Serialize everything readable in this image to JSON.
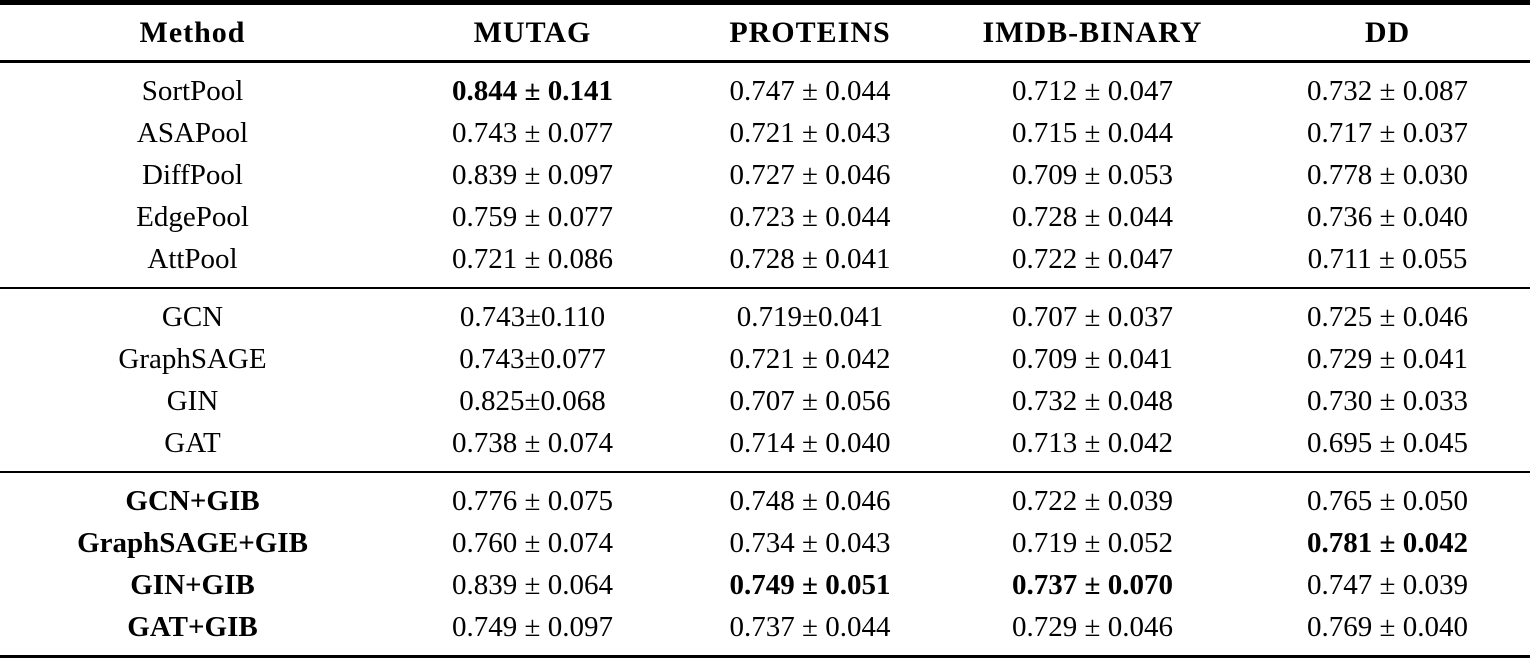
{
  "table": {
    "columns": [
      "Method",
      "MUTAG",
      "PROTEINS",
      "IMDB-BINARY",
      "DD"
    ],
    "text_color": "#000000",
    "background_color": "#ffffff",
    "rule_color": "#000000",
    "sections": [
      {
        "name": "pooling-methods",
        "rows": [
          {
            "method": {
              "text": "SortPool",
              "bold": false
            },
            "values": [
              {
                "text": "0.844 ± 0.141",
                "bold": true
              },
              {
                "text": "0.747 ± 0.044",
                "bold": false
              },
              {
                "text": "0.712 ± 0.047",
                "bold": false
              },
              {
                "text": "0.732 ± 0.087",
                "bold": false
              }
            ]
          },
          {
            "method": {
              "text": "ASAPool",
              "bold": false
            },
            "values": [
              {
                "text": "0.743 ± 0.077",
                "bold": false
              },
              {
                "text": "0.721 ± 0.043",
                "bold": false
              },
              {
                "text": "0.715 ± 0.044",
                "bold": false
              },
              {
                "text": "0.717 ± 0.037",
                "bold": false
              }
            ]
          },
          {
            "method": {
              "text": "DiffPool",
              "bold": false
            },
            "values": [
              {
                "text": "0.839 ± 0.097",
                "bold": false
              },
              {
                "text": "0.727 ± 0.046",
                "bold": false
              },
              {
                "text": "0.709 ± 0.053",
                "bold": false
              },
              {
                "text": "0.778 ± 0.030",
                "bold": false
              }
            ]
          },
          {
            "method": {
              "text": "EdgePool",
              "bold": false
            },
            "values": [
              {
                "text": "0.759 ± 0.077",
                "bold": false
              },
              {
                "text": "0.723 ± 0.044",
                "bold": false
              },
              {
                "text": "0.728 ± 0.044",
                "bold": false
              },
              {
                "text": "0.736 ± 0.040",
                "bold": false
              }
            ]
          },
          {
            "method": {
              "text": "AttPool",
              "bold": false
            },
            "values": [
              {
                "text": "0.721 ± 0.086",
                "bold": false
              },
              {
                "text": "0.728 ± 0.041",
                "bold": false
              },
              {
                "text": "0.722 ± 0.047",
                "bold": false
              },
              {
                "text": "0.711 ± 0.055",
                "bold": false
              }
            ]
          }
        ]
      },
      {
        "name": "gnn-baselines",
        "rows": [
          {
            "method": {
              "text": "GCN",
              "bold": false
            },
            "values": [
              {
                "text": "0.743±0.110",
                "bold": false
              },
              {
                "text": "0.719±0.041",
                "bold": false
              },
              {
                "text": "0.707 ± 0.037",
                "bold": false
              },
              {
                "text": "0.725 ± 0.046",
                "bold": false
              }
            ]
          },
          {
            "method": {
              "text": "GraphSAGE",
              "bold": false
            },
            "values": [
              {
                "text": "0.743±0.077",
                "bold": false
              },
              {
                "text": "0.721 ± 0.042",
                "bold": false
              },
              {
                "text": "0.709 ± 0.041",
                "bold": false
              },
              {
                "text": "0.729 ± 0.041",
                "bold": false
              }
            ]
          },
          {
            "method": {
              "text": "GIN",
              "bold": false
            },
            "values": [
              {
                "text": "0.825±0.068",
                "bold": false
              },
              {
                "text": "0.707 ± 0.056",
                "bold": false
              },
              {
                "text": "0.732 ± 0.048",
                "bold": false
              },
              {
                "text": "0.730 ± 0.033",
                "bold": false
              }
            ]
          },
          {
            "method": {
              "text": "GAT",
              "bold": false
            },
            "values": [
              {
                "text": "0.738 ± 0.074",
                "bold": false
              },
              {
                "text": "0.714 ± 0.040",
                "bold": false
              },
              {
                "text": "0.713 ± 0.042",
                "bold": false
              },
              {
                "text": "0.695 ± 0.045",
                "bold": false
              }
            ]
          }
        ]
      },
      {
        "name": "gib-methods",
        "rows": [
          {
            "method": {
              "text": "GCN+GIB",
              "bold": true
            },
            "values": [
              {
                "text": "0.776 ± 0.075",
                "bold": false
              },
              {
                "text": "0.748 ± 0.046",
                "bold": false
              },
              {
                "text": "0.722 ± 0.039",
                "bold": false
              },
              {
                "text": "0.765 ± 0.050",
                "bold": false
              }
            ]
          },
          {
            "method": {
              "text": "GraphSAGE+GIB",
              "bold": true
            },
            "values": [
              {
                "text": "0.760 ± 0.074",
                "bold": false
              },
              {
                "text": "0.734 ± 0.043",
                "bold": false
              },
              {
                "text": "0.719 ± 0.052",
                "bold": false
              },
              {
                "text": "0.781 ± 0.042",
                "bold": true
              }
            ]
          },
          {
            "method": {
              "text": "GIN+GIB",
              "bold": true
            },
            "values": [
              {
                "text": "0.839 ± 0.064",
                "bold": false
              },
              {
                "text": "0.749 ± 0.051",
                "bold": true
              },
              {
                "text": "0.737 ± 0.070",
                "bold": true
              },
              {
                "text": "0.747 ± 0.039",
                "bold": false
              }
            ]
          },
          {
            "method": {
              "text": "GAT+GIB",
              "bold": true
            },
            "values": [
              {
                "text": "0.749 ± 0.097",
                "bold": false
              },
              {
                "text": "0.737 ± 0.044",
                "bold": false
              },
              {
                "text": "0.729 ± 0.046",
                "bold": false
              },
              {
                "text": "0.769 ± 0.040",
                "bold": false
              }
            ]
          }
        ]
      }
    ]
  }
}
